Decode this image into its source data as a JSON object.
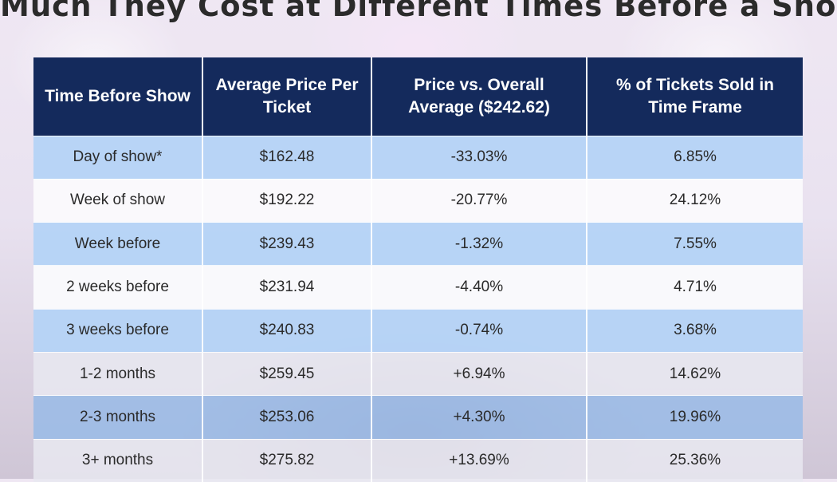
{
  "title": "Much They Cost at Different Times Before a Show",
  "chart_data": {
    "type": "table",
    "columns": [
      "Time Before Show",
      "Average Price Per Ticket",
      "Price vs. Overall Average ($242.62)",
      "% of Tickets Sold in Time Frame"
    ],
    "rows": [
      [
        "Day of show*",
        "$162.48",
        "-33.03%",
        "6.85%"
      ],
      [
        "Week of show",
        "$192.22",
        "-20.77%",
        "24.12%"
      ],
      [
        "Week before",
        "$239.43",
        "-1.32%",
        "7.55%"
      ],
      [
        "2 weeks before",
        "$231.94",
        "-4.40%",
        "4.71%"
      ],
      [
        "3 weeks before",
        "$240.83",
        "-0.74%",
        "3.68%"
      ],
      [
        "1-2 months",
        "$259.45",
        "+6.94%",
        "14.62%"
      ],
      [
        "2-3 months",
        "$253.06",
        "+4.30%",
        "19.96%"
      ],
      [
        "3+ months",
        "$275.82",
        "+13.69%",
        "25.36%"
      ]
    ]
  },
  "colors": {
    "header_bg": "#142a5c",
    "row_blue": "#b3d2f6",
    "row_white": "#fbfbfd",
    "title_text": "#2b2b2b"
  }
}
